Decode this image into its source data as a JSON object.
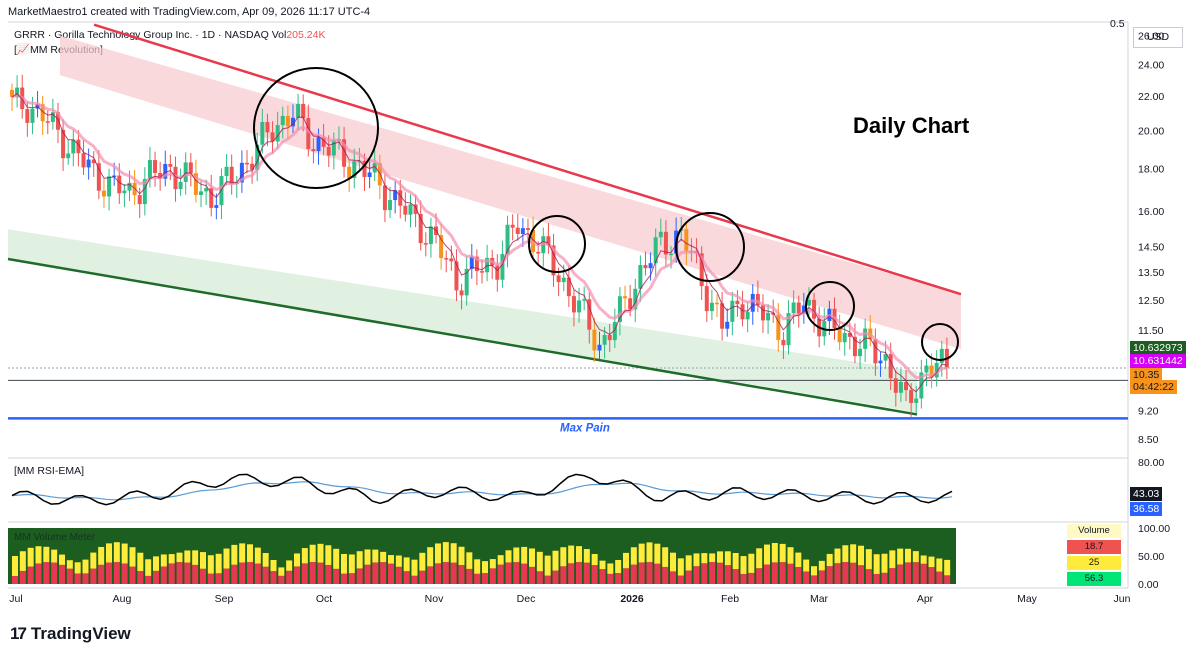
{
  "header": {
    "attribution": "MarketMaestro1 created with TradingView.com, Apr 09, 2026 11:17 UTC-4",
    "symbol_line": "GRRR · Gorilla Technology Group Inc. · 1D · NASDAQ  Vol",
    "volume_value": "205.24K",
    "indicator_label": "MM Revolution",
    "currency": "USD",
    "title": "Daily Chart",
    "top_scale_label": "0.5"
  },
  "rsi_panel": {
    "label": "MM RSI-EMA",
    "rsi_value": "43.03",
    "ema_value": "36.58"
  },
  "volume_panel": {
    "label": "MM Volume Meter",
    "legend_title": "Volume",
    "legend_values": [
      "18.7",
      "25",
      "56.3"
    ]
  },
  "annotations": {
    "max_pain_label": "Max Pain"
  },
  "price_tags": {
    "upper": "10.632973",
    "middle": "10.631442",
    "last_price": "10.35",
    "countdown": "04:42:22"
  },
  "footer": {
    "brand": "TradingView"
  },
  "colors": {
    "up": "#2ebd85",
    "up_blue": "#2962ff",
    "down": "#ef5350",
    "down_orange": "#f7931a",
    "resistance": "#e8394d",
    "support": "#1f6b2a",
    "max_pain": "#2962ff"
  },
  "chart_data": {
    "type": "candlestick",
    "symbol": "GRRR",
    "timeframe": "1D",
    "x_axis_labels": [
      "Jul",
      "Aug",
      "Sep",
      "Oct",
      "Nov",
      "Dec",
      "2026",
      "Feb",
      "Mar",
      "Apr",
      "May",
      "Jun"
    ],
    "price_axis_ticks": [
      "26.00",
      "24.00",
      "22.00",
      "20.00",
      "18.00",
      "16.00",
      "14.50",
      "13.50",
      "12.50",
      "11.50",
      "10.50",
      "9.20",
      "8.50"
    ],
    "price_axis_log": true,
    "price_range": [
      8.2,
      27.0
    ],
    "rsi_axis_ticks": [
      "80.00"
    ],
    "rsi_values_monthly": [
      44,
      38,
      45,
      62,
      58,
      41,
      49,
      42,
      66,
      42,
      47,
      44,
      41,
      43
    ],
    "volume_axis_ticks": [
      "100.00",
      "50.00",
      "0.00"
    ],
    "close_series": [
      21.5,
      20.5,
      19.2,
      18.0,
      17.2,
      16.8,
      17.6,
      18.0,
      17.3,
      16.6,
      17.5,
      18.6,
      20.2,
      20.9,
      19.4,
      18.9,
      18.2,
      17.5,
      16.4,
      15.6,
      14.6,
      13.2,
      13.6,
      13.9,
      15.4,
      14.6,
      13.4,
      12.2,
      11.0,
      12.0,
      13.5,
      14.6,
      15.0,
      13.2,
      11.6,
      12.5,
      12.0,
      11.5,
      12.4,
      11.7,
      11.3,
      11.0,
      10.6,
      9.3,
      10.4,
      10.35
    ],
    "resistance_line": {
      "start": [
        "Jul",
        26.5
      ],
      "end": [
        "Apr",
        12.7
      ]
    },
    "support_line": {
      "start": [
        "Jul",
        14.0
      ],
      "end": [
        "Apr",
        9.1
      ]
    },
    "max_pain_level": 9.0,
    "horizontal_level": 10.0,
    "highlight_circles": 5,
    "last_price": 10.35
  }
}
